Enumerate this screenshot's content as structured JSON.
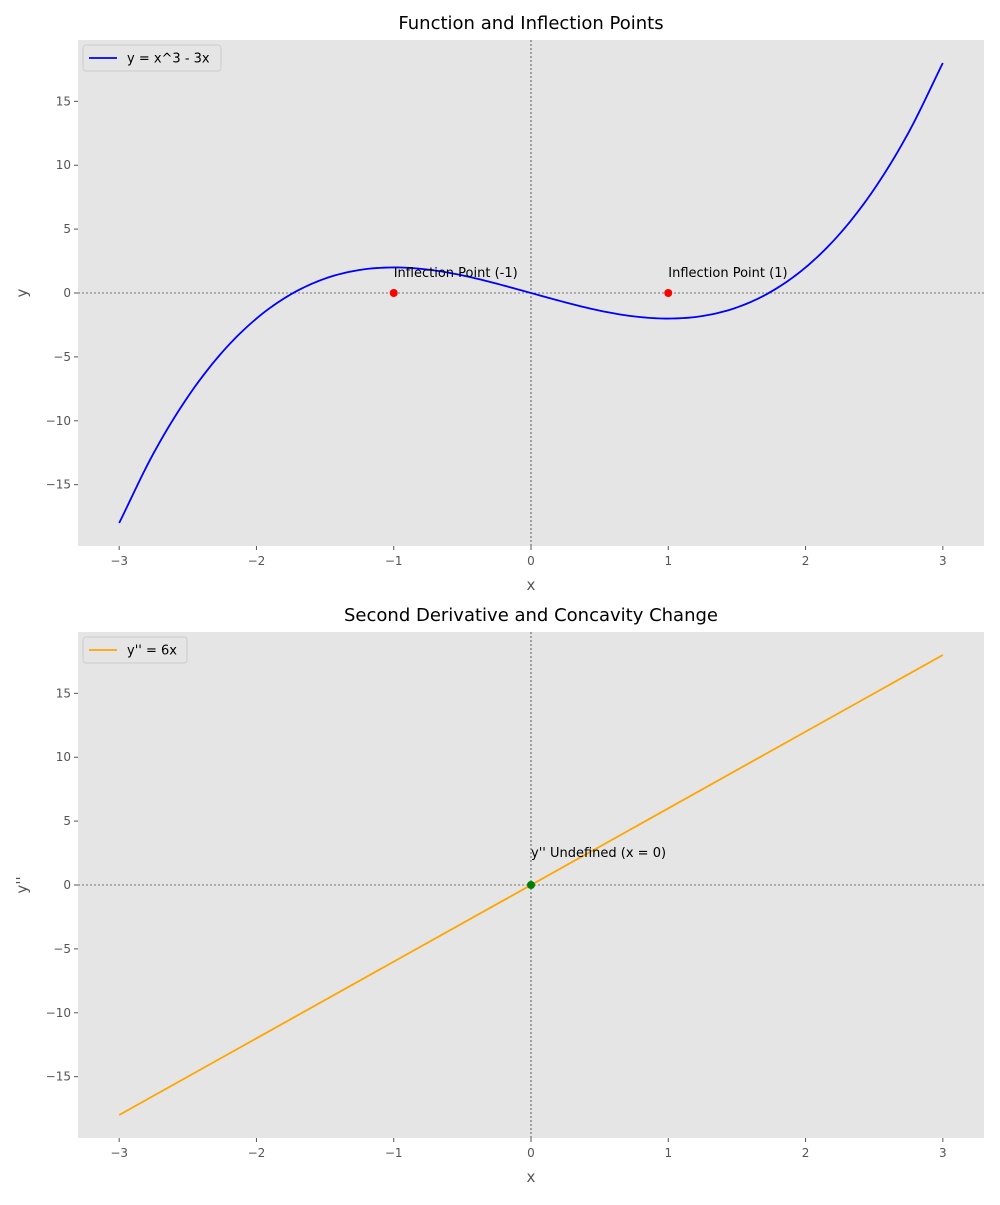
{
  "chart_data": [
    {
      "type": "line",
      "title": "Function and Inflection Points",
      "xlabel": "x",
      "ylabel": "y",
      "xlim": [
        -3.3,
        3.3
      ],
      "ylim": [
        -19.8,
        19.8
      ],
      "xticks": [
        -3,
        -2,
        -1,
        0,
        1,
        2,
        3
      ],
      "xtick_labels": [
        "−3",
        "−2",
        "−1",
        "0",
        "1",
        "2",
        "3"
      ],
      "yticks": [
        -15,
        -10,
        -5,
        0,
        5,
        10,
        15
      ],
      "ytick_labels": [
        "−15",
        "−10",
        "−5",
        "0",
        "5",
        "10",
        "15"
      ],
      "grid": false,
      "legend_position": "top-left",
      "series": [
        {
          "name": "y = x^3 - 3x",
          "color": "#0000ff",
          "x": [
            -3.0,
            -2.75,
            -2.5,
            -2.25,
            -2.0,
            -1.75,
            -1.5,
            -1.25,
            -1.0,
            -0.75,
            -0.5,
            -0.25,
            0.0,
            0.25,
            0.5,
            0.75,
            1.0,
            1.25,
            1.5,
            1.75,
            2.0,
            2.25,
            2.5,
            2.75,
            3.0
          ],
          "y": [
            -18.0,
            -12.55,
            -8.13,
            -4.64,
            -2.0,
            -0.11,
            1.13,
            1.8,
            2.0,
            1.83,
            1.38,
            0.73,
            0.0,
            -0.73,
            -1.38,
            -1.83,
            -2.0,
            -1.8,
            -1.13,
            0.11,
            2.0,
            4.64,
            8.13,
            12.55,
            18.0
          ]
        }
      ],
      "points": [
        {
          "x": -1,
          "y": 0,
          "color": "#ff0000",
          "label": "Inflection Point (-1)"
        },
        {
          "x": 1,
          "y": 0,
          "color": "#ff0000",
          "label": "Inflection Point (1)"
        }
      ],
      "reference_lines": {
        "x": 0,
        "y": 0
      }
    },
    {
      "type": "line",
      "title": "Second Derivative and Concavity Change",
      "xlabel": "x",
      "ylabel": "y''",
      "xlim": [
        -3.3,
        3.3
      ],
      "ylim": [
        -19.8,
        19.8
      ],
      "xticks": [
        -3,
        -2,
        -1,
        0,
        1,
        2,
        3
      ],
      "xtick_labels": [
        "−3",
        "−2",
        "−1",
        "0",
        "1",
        "2",
        "3"
      ],
      "yticks": [
        -15,
        -10,
        -5,
        0,
        5,
        10,
        15
      ],
      "ytick_labels": [
        "−15",
        "−10",
        "−5",
        "0",
        "5",
        "10",
        "15"
      ],
      "grid": false,
      "legend_position": "top-left",
      "series": [
        {
          "name": "y'' = 6x",
          "color": "#ffa500",
          "x": [
            -3.0,
            3.0
          ],
          "y": [
            -18.0,
            18.0
          ]
        }
      ],
      "points": [
        {
          "x": 0,
          "y": 0,
          "color": "#008000",
          "label": "y'' Undefined (x = 0)"
        }
      ],
      "reference_lines": {
        "x": 0,
        "y": 0
      }
    }
  ]
}
